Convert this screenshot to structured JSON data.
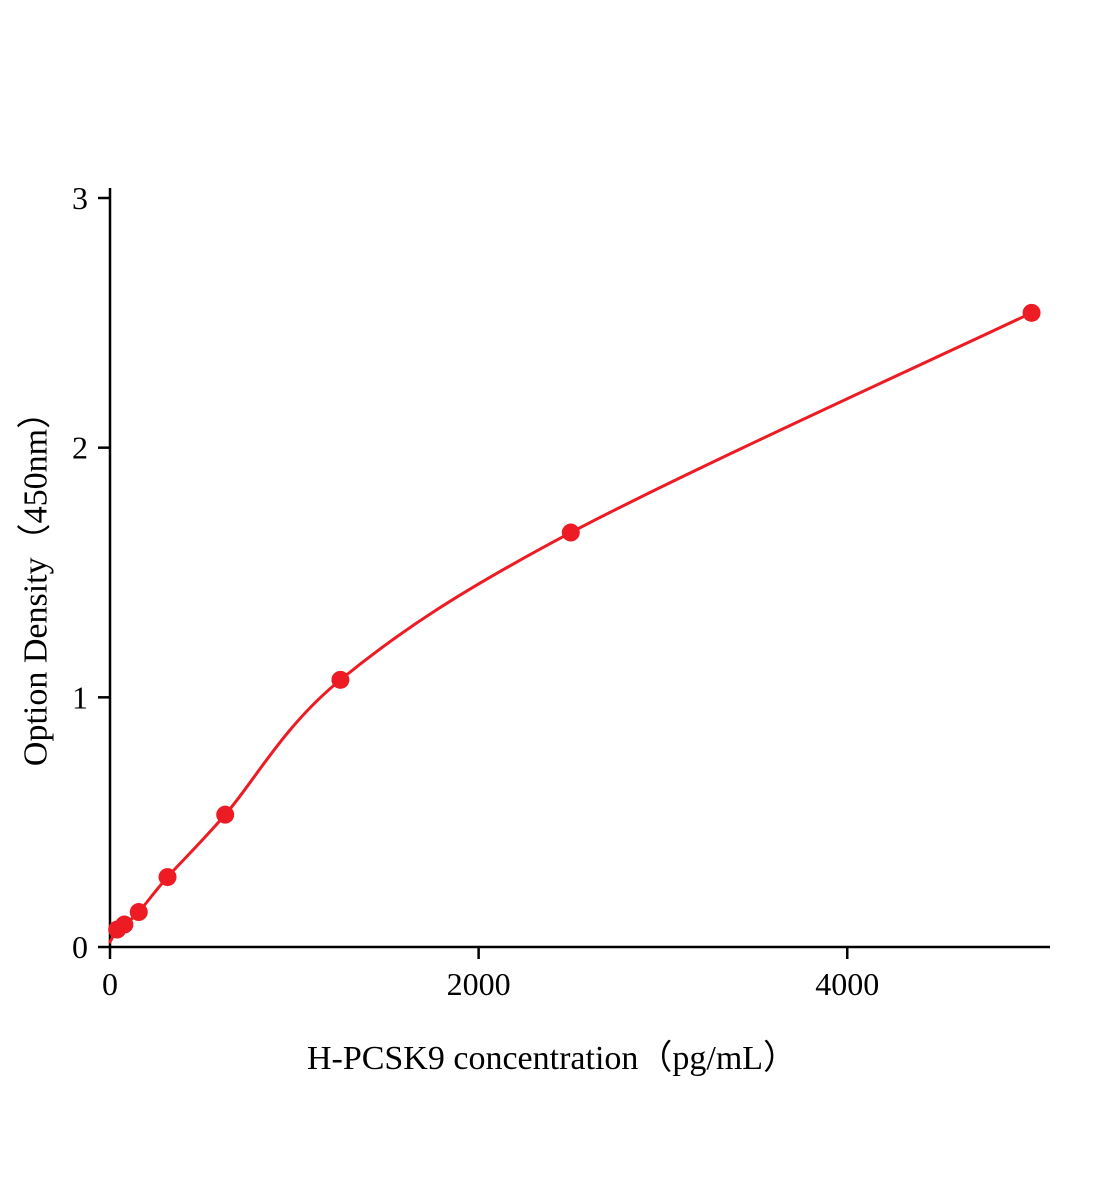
{
  "figure": {
    "background": "#ffffff"
  },
  "chart_data": {
    "type": "scatter",
    "title": "",
    "xlabel": "H-PCSK9 concentration（pg/mL）",
    "ylabel": "Option Density（450nm）",
    "x": [
      39,
      78,
      156,
      312,
      625,
      1250,
      2500,
      5000
    ],
    "y": [
      0.07,
      0.09,
      0.14,
      0.28,
      0.53,
      1.07,
      1.66,
      2.54
    ],
    "curve_start": [
      0,
      0.02
    ],
    "xlim": [
      0,
      5100
    ],
    "ylim": [
      0,
      3
    ],
    "x_ticks": [
      0,
      2000,
      4000
    ],
    "y_ticks": [
      0,
      1,
      2,
      3
    ],
    "grid": false,
    "legend": "none",
    "series_color": "#ed1c24",
    "axis_color": "#000000",
    "point_radius": 9,
    "line_width": 3
  }
}
